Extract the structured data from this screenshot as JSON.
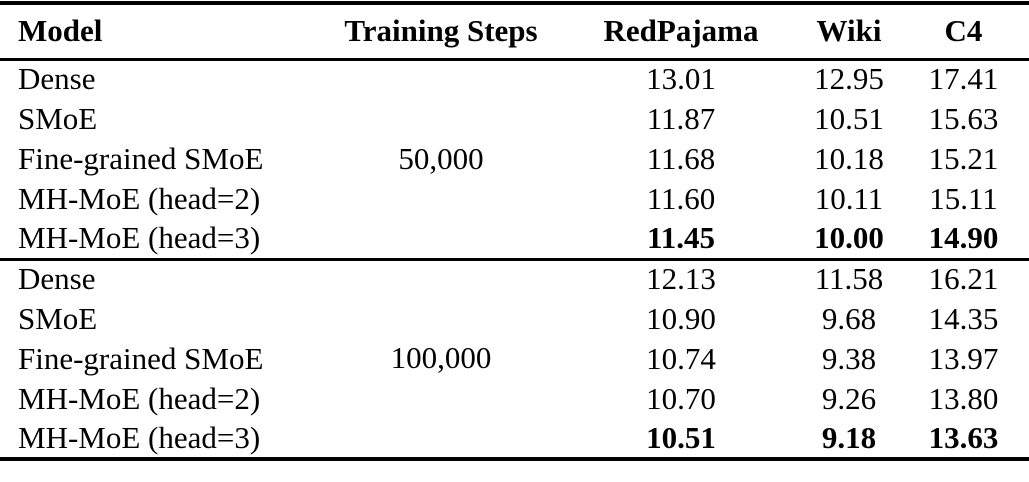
{
  "table": {
    "columns": [
      "Model",
      "Training Steps",
      "RedPajama",
      "Wiki",
      "C4"
    ],
    "groups": [
      {
        "training_steps": "50,000",
        "rows": [
          {
            "model": "Dense",
            "redpajama": "13.01",
            "wiki": "12.95",
            "c4": "17.41",
            "bold": false
          },
          {
            "model": "SMoE",
            "redpajama": "11.87",
            "wiki": "10.51",
            "c4": "15.63",
            "bold": false
          },
          {
            "model": "Fine-grained SMoE",
            "redpajama": "11.68",
            "wiki": "10.18",
            "c4": "15.21",
            "bold": false
          },
          {
            "model": "MH-MoE (head=2)",
            "redpajama": "11.60",
            "wiki": "10.11",
            "c4": "15.11",
            "bold": false
          },
          {
            "model": "MH-MoE (head=3)",
            "redpajama": "11.45",
            "wiki": "10.00",
            "c4": "14.90",
            "bold": true
          }
        ]
      },
      {
        "training_steps": "100,000",
        "rows": [
          {
            "model": "Dense",
            "redpajama": "12.13",
            "wiki": "11.58",
            "c4": "16.21",
            "bold": false
          },
          {
            "model": "SMoE",
            "redpajama": "10.90",
            "wiki": "9.68",
            "c4": "14.35",
            "bold": false
          },
          {
            "model": "Fine-grained SMoE",
            "redpajama": "10.74",
            "wiki": "9.38",
            "c4": "13.97",
            "bold": false
          },
          {
            "model": "MH-MoE (head=2)",
            "redpajama": "10.70",
            "wiki": "9.26",
            "c4": "13.80",
            "bold": false
          },
          {
            "model": "MH-MoE (head=3)",
            "redpajama": "10.51",
            "wiki": "9.18",
            "c4": "13.63",
            "bold": true
          }
        ]
      }
    ]
  },
  "colors": {
    "text": "#000000",
    "background": "#ffffff",
    "rule": "#000000"
  }
}
